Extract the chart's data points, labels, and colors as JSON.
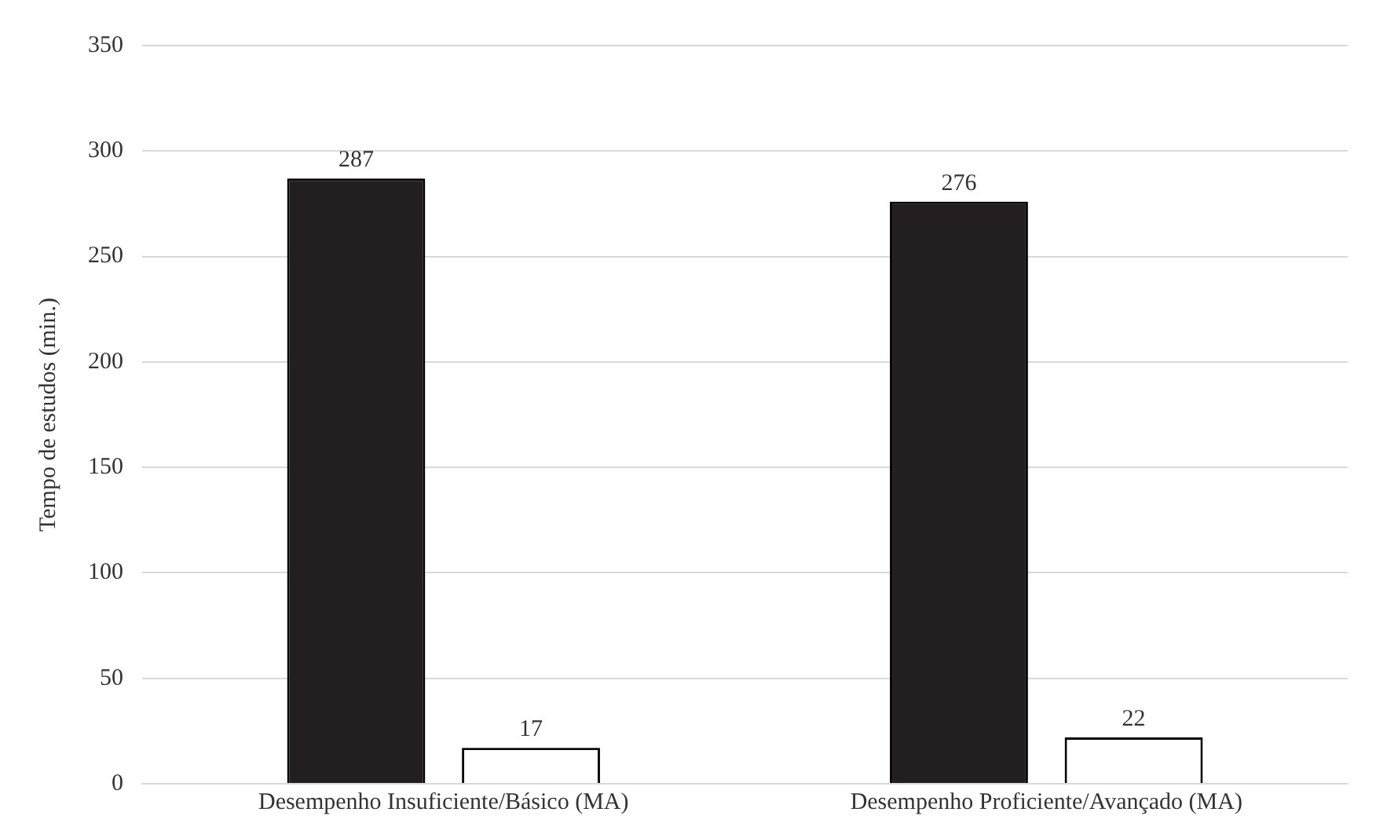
{
  "chart_data": {
    "type": "bar",
    "ylabel": "Tempo de estudos (min.)",
    "categories": [
      "Desempenho Insuficiente/Básico (MA)",
      "Desempenho Proficiente/Avançado (MA)"
    ],
    "series": [
      {
        "color": "#231f20",
        "values": [
          287,
          276
        ]
      },
      {
        "color": "#ffffff",
        "values": [
          17,
          22
        ]
      }
    ],
    "ylim": [
      0,
      350
    ],
    "yticks": [
      0,
      50,
      100,
      150,
      200,
      250,
      300,
      350
    ],
    "grid": "y",
    "data_labels": true,
    "legend": false
  }
}
